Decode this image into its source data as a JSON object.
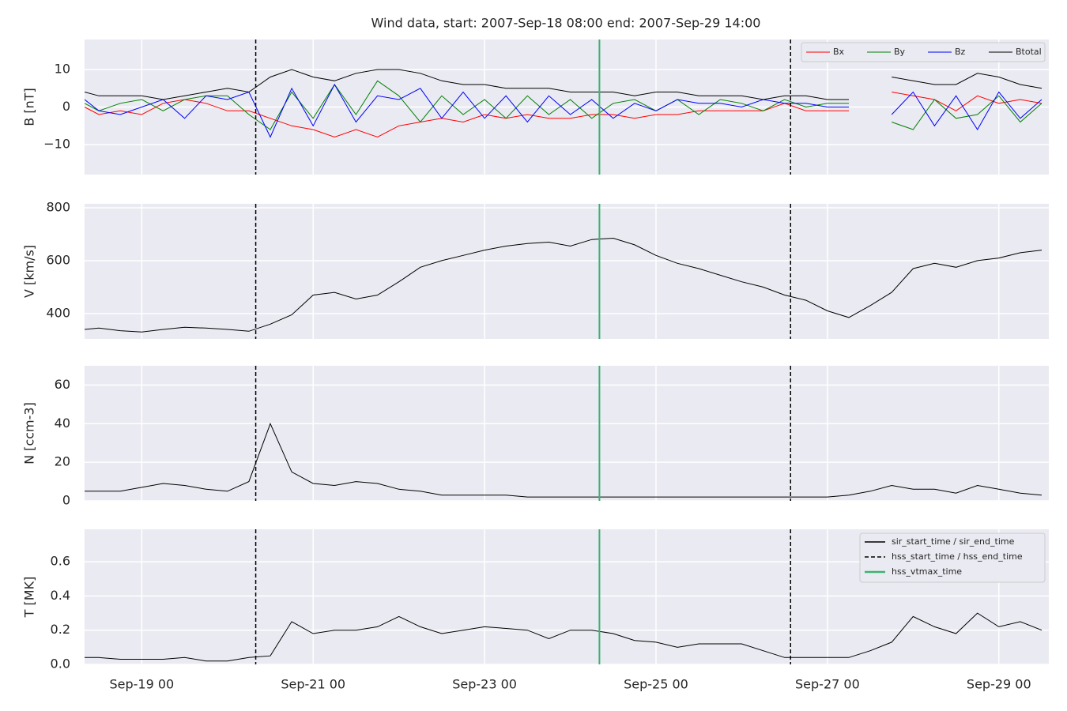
{
  "title": "Wind data, start: 2007-Sep-18 08:00  end: 2007-Sep-29 14:00",
  "x": [
    18.333,
    18.5,
    18.75,
    19,
    19.25,
    19.5,
    19.75,
    20,
    20.25,
    20.5,
    20.75,
    21,
    21.25,
    21.5,
    21.75,
    22,
    22.25,
    22.5,
    22.75,
    23,
    23.25,
    23.5,
    23.75,
    24,
    24.25,
    24.5,
    24.75,
    25,
    25.25,
    25.5,
    25.75,
    26,
    26.25,
    26.5,
    26.75,
    27,
    27.25,
    27.5,
    27.75,
    28,
    28.25,
    28.5,
    28.75,
    29,
    29.25,
    29.5
  ],
  "xlim": [
    18.333,
    29.583
  ],
  "xticks": [
    {
      "value": 19,
      "label": "Sep-19 00"
    },
    {
      "value": 21,
      "label": "Sep-21 00"
    },
    {
      "value": 23,
      "label": "Sep-23 00"
    },
    {
      "value": 25,
      "label": "Sep-25 00"
    },
    {
      "value": 27,
      "label": "Sep-27 00"
    },
    {
      "value": 29,
      "label": "Sep-29 00"
    }
  ],
  "events": [
    {
      "name": "sir_start_time / sir_end_time",
      "color": "#000000",
      "dash": false,
      "x": []
    },
    {
      "name": "hss_start_time / hss_end_time",
      "color": "#000000",
      "dash": true,
      "x": [
        20.33,
        26.57
      ]
    },
    {
      "name": "hss_vtmax_time",
      "color": "#3cb371",
      "dash": false,
      "x": [
        24.34
      ]
    }
  ],
  "chart_data": [
    {
      "type": "line",
      "ylabel": "B [nT]",
      "ylim": [
        -18,
        18
      ],
      "yticks": [
        {
          "value": -10,
          "label": "−10"
        },
        0,
        10
      ],
      "grid": true,
      "legend": "upper right",
      "series": [
        {
          "name": "Bx",
          "color": "#ff0000",
          "values": [
            0,
            -2,
            -1,
            -2,
            1,
            2,
            1,
            -1,
            -1,
            -3,
            -5,
            -6,
            -8,
            -6,
            -8,
            -5,
            -4,
            -3,
            -4,
            -2,
            -3,
            -2,
            -3,
            -3,
            -2,
            -2,
            -3,
            -2,
            -2,
            -1,
            -1,
            -1,
            -1,
            1,
            -1,
            -1,
            -1,
            null,
            4,
            3,
            2,
            -1,
            3,
            1,
            2,
            1
          ]
        },
        {
          "name": "By",
          "color": "#008000",
          "values": [
            1,
            -1,
            1,
            2,
            -1,
            2,
            3,
            3,
            -2,
            -6,
            4,
            -3,
            6,
            -2,
            7,
            3,
            -4,
            3,
            -2,
            2,
            -3,
            3,
            -2,
            2,
            -3,
            1,
            2,
            -1,
            2,
            -2,
            2,
            1,
            -1,
            2,
            0,
            1,
            1,
            null,
            -4,
            -6,
            2,
            -3,
            -2,
            3,
            -4,
            1
          ]
        },
        {
          "name": "Bz",
          "color": "#0000ff",
          "values": [
            2,
            -1,
            -2,
            0,
            2,
            -3,
            3,
            2,
            4,
            -8,
            5,
            -5,
            6,
            -4,
            3,
            2,
            5,
            -3,
            4,
            -3,
            3,
            -4,
            3,
            -2,
            2,
            -3,
            1,
            -1,
            2,
            1,
            1,
            0,
            2,
            1,
            1,
            0,
            0,
            null,
            -2,
            4,
            -5,
            3,
            -6,
            4,
            -3,
            2
          ]
        },
        {
          "name": "Btotal",
          "color": "#000000",
          "values": [
            4,
            3,
            3,
            3,
            2,
            3,
            4,
            5,
            4,
            8,
            10,
            8,
            7,
            9,
            10,
            10,
            9,
            7,
            6,
            6,
            5,
            5,
            5,
            4,
            4,
            4,
            3,
            4,
            4,
            3,
            3,
            3,
            2,
            3,
            3,
            2,
            2,
            null,
            8,
            7,
            6,
            6,
            9,
            8,
            6,
            5
          ]
        }
      ]
    },
    {
      "type": "line",
      "ylabel": "V [km/s]",
      "ylim": [
        304,
        815
      ],
      "yticks": [
        400,
        600,
        800
      ],
      "grid": true,
      "series": [
        {
          "color": "#000000",
          "values": [
            340,
            345,
            335,
            330,
            340,
            348,
            345,
            340,
            333,
            360,
            395,
            470,
            480,
            455,
            470,
            520,
            575,
            600,
            620,
            640,
            655,
            665,
            670,
            655,
            680,
            685,
            660,
            620,
            590,
            570,
            545,
            520,
            500,
            470,
            450,
            410,
            385,
            430,
            480,
            570,
            590,
            575,
            600,
            610,
            630,
            640
          ]
        }
      ]
    },
    {
      "type": "line",
      "ylabel": "N [ccm-3]",
      "ylim": [
        0,
        70
      ],
      "yticks": [
        0,
        20,
        40,
        60
      ],
      "grid": true,
      "series": [
        {
          "color": "#000000",
          "values": [
            5,
            5,
            5,
            7,
            9,
            8,
            6,
            5,
            10,
            40,
            15,
            9,
            8,
            10,
            9,
            6,
            5,
            3,
            3,
            3,
            3,
            2,
            2,
            2,
            2,
            2,
            2,
            2,
            2,
            2,
            2,
            2,
            2,
            2,
            2,
            2,
            3,
            5,
            8,
            6,
            6,
            4,
            8,
            6,
            4,
            3
          ]
        }
      ]
    },
    {
      "type": "line",
      "ylabel": "T [MK]",
      "ylim": [
        0,
        0.79
      ],
      "yticks": [
        {
          "value": 0,
          "label": "0.0"
        },
        0.2,
        0.4,
        0.6
      ],
      "grid": true,
      "legend": "upper right",
      "series": [
        {
          "color": "#000000",
          "values": [
            0.04,
            0.04,
            0.03,
            0.03,
            0.03,
            0.04,
            0.02,
            0.02,
            0.04,
            0.05,
            0.25,
            0.18,
            0.2,
            0.2,
            0.22,
            0.28,
            0.22,
            0.18,
            0.2,
            0.22,
            0.21,
            0.2,
            0.15,
            0.2,
            0.2,
            0.18,
            0.14,
            0.13,
            0.1,
            0.12,
            0.12,
            0.12,
            0.08,
            0.04,
            0.04,
            0.04,
            0.04,
            0.08,
            0.13,
            0.28,
            0.22,
            0.18,
            0.3,
            0.22,
            0.25,
            0.2
          ]
        }
      ]
    }
  ]
}
